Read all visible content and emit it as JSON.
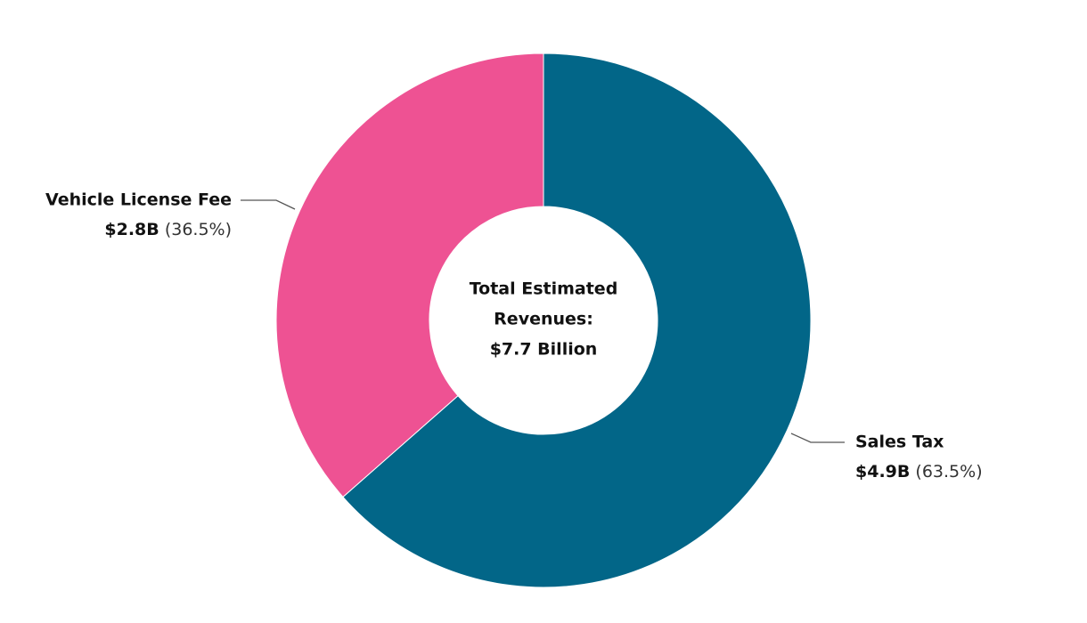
{
  "chart_data": {
    "type": "pie",
    "categories": [
      "Sales Tax",
      "Vehicle License Fee"
    ],
    "values": [
      63.5,
      36.5
    ],
    "value_labels": [
      "(63.5%)",
      "(36.5%)"
    ],
    "amounts": [
      4.9,
      2.8
    ],
    "amount_labels": [
      "$4.9B",
      "$2.8B"
    ],
    "colors": [
      "#026688",
      "#ee5293"
    ],
    "center_text": [
      "Total Estimated",
      "Revenues:",
      "$7.7 Billion"
    ]
  }
}
